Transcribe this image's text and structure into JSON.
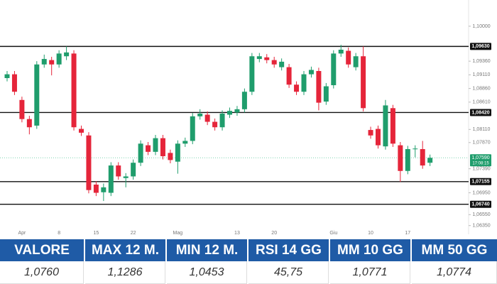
{
  "chart_data": {
    "type": "candlestick",
    "categories": [
      null,
      null,
      "Apr",
      null,
      null,
      null,
      null,
      "8",
      null,
      null,
      null,
      null,
      "15",
      null,
      null,
      null,
      null,
      "22",
      null,
      null,
      null,
      null,
      null,
      "Mag",
      null,
      null,
      null,
      null,
      null,
      null,
      null,
      "13",
      null,
      null,
      null,
      null,
      "20",
      null,
      null,
      null,
      null,
      null,
      null,
      null,
      "Giu",
      null,
      null,
      null,
      null,
      "10",
      null,
      null,
      null,
      null,
      "17",
      null,
      null,
      null
    ],
    "open": [
      1.0905,
      1.0912,
      1.0865,
      1.083,
      1.0818,
      1.093,
      1.0938,
      1.093,
      1.0945,
      1.095,
      1.0812,
      1.08,
      1.071,
      1.0696,
      1.0695,
      1.0745,
      1.0722,
      1.0725,
      1.075,
      1.0782,
      1.077,
      1.0795,
      1.0768,
      1.0752,
      1.0785,
      1.079,
      1.0835,
      1.0838,
      1.0825,
      1.0815,
      1.0838,
      1.0842,
      1.0848,
      1.088,
      1.094,
      1.0943,
      1.0938,
      1.0925,
      1.0925,
      1.0893,
      1.088,
      1.0912,
      1.0918,
      1.0862,
      1.0892,
      1.095,
      1.0955,
      1.0925,
      1.0945,
      1.081,
      1.0812,
      1.078,
      1.085,
      1.0782,
      1.0735,
      1.0775,
      1.0775,
      1.075
    ],
    "high": [
      1.0918,
      1.0918,
      1.0871,
      1.0836,
      1.0936,
      1.0948,
      1.0944,
      1.0956,
      1.0963,
      1.0956,
      1.0818,
      1.0806,
      1.0716,
      1.0712,
      1.0751,
      1.0751,
      1.0731,
      1.0756,
      1.0791,
      1.0788,
      1.0801,
      1.0801,
      1.0774,
      1.0791,
      1.0796,
      1.0841,
      1.0848,
      1.0844,
      1.0831,
      1.0846,
      1.0851,
      1.0854,
      1.0886,
      1.0951,
      1.0951,
      1.0949,
      1.0944,
      1.0941,
      1.0931,
      1.0899,
      1.0918,
      1.0926,
      1.0924,
      1.0896,
      1.0956,
      1.0966,
      1.0961,
      1.0951,
      1.0963,
      1.0816,
      1.0818,
      1.0865,
      1.0856,
      1.0788,
      1.0781,
      1.0782,
      1.079,
      1.0765
    ],
    "low": [
      1.0899,
      1.0874,
      1.0824,
      1.0802,
      1.0812,
      1.0924,
      1.091,
      1.0924,
      1.0938,
      1.0809,
      1.0799,
      1.0694,
      1.0689,
      1.068,
      1.0689,
      1.0719,
      1.0705,
      1.0719,
      1.0744,
      1.0764,
      1.0764,
      1.0756,
      1.0749,
      1.073,
      1.0779,
      1.0784,
      1.0829,
      1.0819,
      1.0809,
      1.0809,
      1.0832,
      1.0836,
      1.0842,
      1.0874,
      1.0934,
      1.0932,
      1.0924,
      1.0919,
      1.0887,
      1.0874,
      1.0874,
      1.0906,
      1.0846,
      1.0856,
      1.0886,
      1.0944,
      1.0924,
      1.0919,
      1.0844,
      1.0794,
      1.0776,
      1.0774,
      1.0779,
      1.0715,
      1.0729,
      1.076,
      1.0739,
      1.0744
    ],
    "close": [
      1.0912,
      1.088,
      1.083,
      1.0815,
      1.093,
      1.094,
      1.093,
      1.095,
      1.0952,
      1.0815,
      1.0805,
      1.07,
      1.0695,
      1.0705,
      1.0745,
      1.0725,
      1.0725,
      1.075,
      1.0785,
      1.077,
      1.0795,
      1.0762,
      1.0755,
      1.0785,
      1.079,
      1.0835,
      1.084,
      1.0825,
      1.0815,
      1.084,
      1.0845,
      1.0848,
      1.088,
      1.0945,
      1.0945,
      1.0938,
      1.093,
      1.0935,
      1.0893,
      1.088,
      1.0912,
      1.092,
      1.086,
      1.089,
      1.095,
      1.0957,
      1.093,
      1.0945,
      1.085,
      1.08,
      1.0782,
      1.0855,
      1.0785,
      1.0735,
      1.0775,
      1.0776,
      1.0745,
      1.0759
    ],
    "up_color": "#1f9d6c",
    "down_color": "#e5253a",
    "ylim": [
      1.0619,
      1.1048
    ],
    "yticks": [
      {
        "value": 1.1,
        "label": "1,10000"
      },
      {
        "value": 1.0936,
        "label": "1,09360"
      },
      {
        "value": 1.0911,
        "label": "1,09110"
      },
      {
        "value": 1.0886,
        "label": "1,08860"
      },
      {
        "value": 1.0861,
        "label": "1,08610"
      },
      {
        "value": 1.0811,
        "label": "1,08110"
      },
      {
        "value": 1.0787,
        "label": "1,07870"
      },
      {
        "value": 1.0739,
        "label": "1,07390"
      },
      {
        "value": 1.0695,
        "label": "1,06950"
      },
      {
        "value": 1.0655,
        "label": "1,06550"
      },
      {
        "value": 1.0635,
        "label": "1,06350"
      }
    ],
    "levels": [
      {
        "value": 1.0963,
        "label": "1,09630"
      },
      {
        "value": 1.0842,
        "label": "1,08420"
      },
      {
        "value": 1.07155,
        "label": "1,07155"
      },
      {
        "value": 1.0674,
        "label": "1,06740"
      }
    ],
    "last_price": {
      "value": 1.0759,
      "label": "1,07590",
      "time": "17:08:15"
    }
  },
  "table": {
    "headers": [
      "VALORE",
      "MAX 12 M.",
      "MIN 12 M.",
      "RSI 14 GG",
      "MM 10 GG",
      "MM 50 GG"
    ],
    "rows": [
      [
        "1,0760",
        "1,1286",
        "1,0453",
        "45,75",
        "1,0771",
        "1,0774"
      ]
    ]
  }
}
